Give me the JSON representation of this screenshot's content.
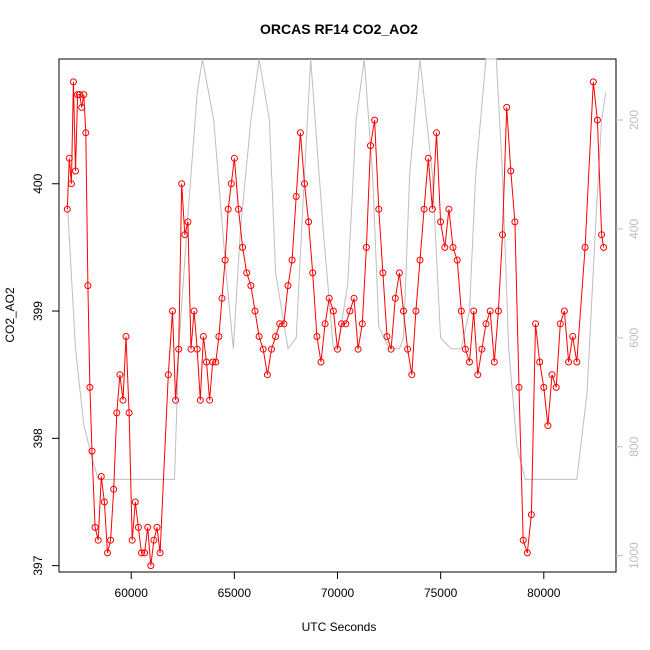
{
  "chart_data": {
    "type": "line",
    "title": "ORCAS RF14 CO2_AO2",
    "xlabel": "UTC Seconds",
    "ylabel": "CO2_AO2",
    "xlim": [
      56500,
      83500
    ],
    "ylim": [
      396.95,
      400.98
    ],
    "x_ticks": [
      60000,
      65000,
      70000,
      75000,
      80000
    ],
    "y_ticks": [
      397,
      398,
      399,
      400
    ],
    "y2_ticks": [
      200,
      400,
      600,
      800,
      1000
    ],
    "y2lim": [
      1030,
      88
    ],
    "grid": false,
    "series": [
      {
        "color": "#ff0000",
        "marker": "open-circle",
        "x": [
          56900,
          57000,
          57100,
          57200,
          57300,
          57400,
          57500,
          57600,
          57700,
          57800,
          57900,
          58000,
          58100,
          58250,
          58400,
          58550,
          58700,
          58850,
          59000,
          59150,
          59300,
          59450,
          59600,
          59750,
          59900,
          60050,
          60200,
          60350,
          60500,
          60650,
          60800,
          60950,
          61100,
          61250,
          61400,
          61800,
          62000,
          62150,
          62300,
          62450,
          62600,
          62750,
          62900,
          63050,
          63200,
          63350,
          63500,
          63650,
          63800,
          63950,
          64100,
          64250,
          64400,
          64550,
          64700,
          64850,
          65000,
          65200,
          65400,
          65600,
          65800,
          66000,
          66200,
          66400,
          66600,
          66800,
          67000,
          67200,
          67400,
          67600,
          67800,
          68000,
          68200,
          68400,
          68600,
          68800,
          69000,
          69200,
          69400,
          69600,
          69800,
          70000,
          70200,
          70400,
          70600,
          70800,
          71000,
          71200,
          71400,
          71600,
          71800,
          72000,
          72200,
          72400,
          72600,
          72800,
          73000,
          73200,
          73400,
          73600,
          73800,
          74000,
          74200,
          74400,
          74600,
          74800,
          75000,
          75200,
          75400,
          75600,
          75800,
          76000,
          76200,
          76400,
          76600,
          76800,
          77000,
          77200,
          77400,
          77600,
          77800,
          78000,
          78200,
          78400,
          78600,
          78800,
          79000,
          79200,
          79400,
          79600,
          79800,
          80000,
          80200,
          80400,
          80600,
          80800,
          81000,
          81200,
          81400,
          81600,
          82000,
          82400,
          82600,
          82800,
          82900
        ],
        "values": [
          399.8,
          400.2,
          400.0,
          400.8,
          400.1,
          400.7,
          400.7,
          400.6,
          400.7,
          400.4,
          399.2,
          398.4,
          397.9,
          397.3,
          397.2,
          397.7,
          397.5,
          397.1,
          397.2,
          397.6,
          398.2,
          398.5,
          398.3,
          398.8,
          398.2,
          397.2,
          397.5,
          397.3,
          397.1,
          397.1,
          397.3,
          397.0,
          397.2,
          397.3,
          397.1,
          398.5,
          399.0,
          398.3,
          398.7,
          400.0,
          399.6,
          399.7,
          398.7,
          399.0,
          398.7,
          398.3,
          398.8,
          398.6,
          398.3,
          398.6,
          398.6,
          398.8,
          399.1,
          399.4,
          399.8,
          400.0,
          400.2,
          399.8,
          399.5,
          399.3,
          399.2,
          399.0,
          398.8,
          398.7,
          398.5,
          398.7,
          398.8,
          398.9,
          398.9,
          399.2,
          399.4,
          399.9,
          400.4,
          400.0,
          399.7,
          399.3,
          398.8,
          398.6,
          398.9,
          399.1,
          399.0,
          398.7,
          398.9,
          398.9,
          399.0,
          399.1,
          398.7,
          398.9,
          399.5,
          400.3,
          400.5,
          399.8,
          399.3,
          398.8,
          398.7,
          399.1,
          399.3,
          399.0,
          398.7,
          398.5,
          399.0,
          399.4,
          399.8,
          400.2,
          399.8,
          400.4,
          399.7,
          399.5,
          399.8,
          399.5,
          399.4,
          399.0,
          398.7,
          398.6,
          399.0,
          398.5,
          398.7,
          398.9,
          399.0,
          398.6,
          399.0,
          399.6,
          400.6,
          400.1,
          399.7,
          398.4,
          397.2,
          397.1,
          397.4,
          398.9,
          398.6,
          398.4,
          398.1,
          398.5,
          398.4,
          398.9,
          399.0,
          398.6,
          398.8,
          398.6,
          399.5,
          400.8,
          400.5,
          399.6,
          399.5
        ]
      },
      {
        "color": "#bebebe",
        "axis": "right",
        "x": [
          56900,
          57300,
          57700,
          58100,
          58400,
          59000,
          59600,
          60200,
          61000,
          62100,
          62300,
          62700,
          63200,
          63450,
          64000,
          64600,
          64950,
          65300,
          65800,
          66200,
          66700,
          67000,
          67600,
          68000,
          68400,
          68700,
          69300,
          69800,
          70000,
          70500,
          70900,
          71300,
          71700,
          72000,
          72500,
          73000,
          73200,
          73500,
          74000,
          74600,
          75000,
          75500,
          76000,
          76400,
          76700,
          77200,
          77700,
          78000,
          78300,
          78700,
          79100,
          79500,
          80000,
          80500,
          81000,
          81600,
          82100,
          82500,
          82800,
          83000
        ],
        "values": [
          350,
          620,
          760,
          820,
          860,
          860,
          860,
          860,
          860,
          860,
          620,
          400,
          150,
          88,
          200,
          480,
          620,
          400,
          200,
          88,
          200,
          480,
          620,
          600,
          300,
          88,
          400,
          620,
          620,
          500,
          200,
          88,
          300,
          580,
          620,
          620,
          600,
          300,
          88,
          300,
          600,
          620,
          620,
          550,
          300,
          88,
          88,
          300,
          620,
          800,
          860,
          860,
          860,
          860,
          860,
          860,
          700,
          400,
          200,
          150
        ]
      }
    ]
  }
}
